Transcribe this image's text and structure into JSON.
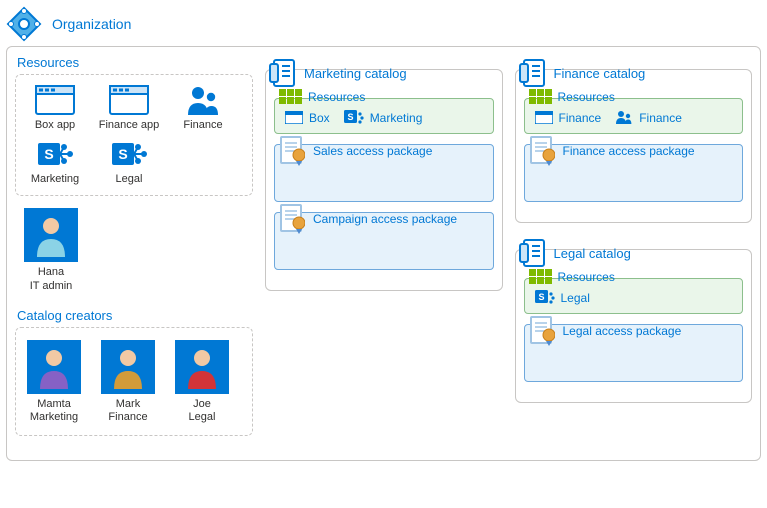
{
  "colors": {
    "brand": "#0078d4",
    "border": "#c8c6c4",
    "text": "#323130",
    "green_border": "#8cbf8c",
    "green_fill": "#eaf6ea",
    "blue_border": "#6ea8dc",
    "blue_fill": "#e6f2fb",
    "grid_green": "#7fba00",
    "orange": "#e8a33d",
    "avatar_purple": "#8661c5",
    "avatar_gold": "#d29b3a",
    "avatar_red": "#d13438"
  },
  "org": {
    "title": "Organization"
  },
  "resources": {
    "title": "Resources",
    "items": [
      {
        "id": "box-app",
        "label": "Box app",
        "icon": "app-window"
      },
      {
        "id": "finance-app",
        "label": "Finance app",
        "icon": "app-window"
      },
      {
        "id": "finance-group",
        "label": "Finance",
        "icon": "people-group"
      },
      {
        "id": "marketing-sp",
        "label": "Marketing",
        "icon": "sharepoint"
      },
      {
        "id": "legal-sp",
        "label": "Legal",
        "icon": "sharepoint"
      }
    ]
  },
  "admin": {
    "name": "Hana",
    "role": "IT admin",
    "avatar_color": "#0078d4",
    "shirt_color": "#8bd3e6"
  },
  "creators": {
    "title": "Catalog creators",
    "items": [
      {
        "name": "Mamta",
        "role": "Marketing",
        "shirt_color": "#8661c5"
      },
      {
        "name": "Mark",
        "role": "Finance",
        "shirt_color": "#d29b3a"
      },
      {
        "name": "Joe",
        "role": "Legal",
        "shirt_color": "#d13438"
      }
    ]
  },
  "catalogs": [
    {
      "name": "Marketing catalog",
      "resources_label": "Resources",
      "resources": [
        {
          "label": "Box",
          "icon": "app-window-sm"
        },
        {
          "label": "Marketing",
          "icon": "sharepoint-sm"
        }
      ],
      "packages": [
        {
          "label": "Sales access package"
        },
        {
          "label": "Campaign access package"
        }
      ]
    },
    {
      "name": "Finance catalog",
      "resources_label": "Resources",
      "resources": [
        {
          "label": "Finance",
          "icon": "app-window-sm"
        },
        {
          "label": "Finance",
          "icon": "people-sm"
        }
      ],
      "packages": [
        {
          "label": "Finance access package"
        }
      ]
    },
    {
      "name": "Legal catalog",
      "resources_label": "Resources",
      "resources": [
        {
          "label": "Legal",
          "icon": "sharepoint-sm"
        }
      ],
      "packages": [
        {
          "label": "Legal access package"
        }
      ]
    }
  ]
}
